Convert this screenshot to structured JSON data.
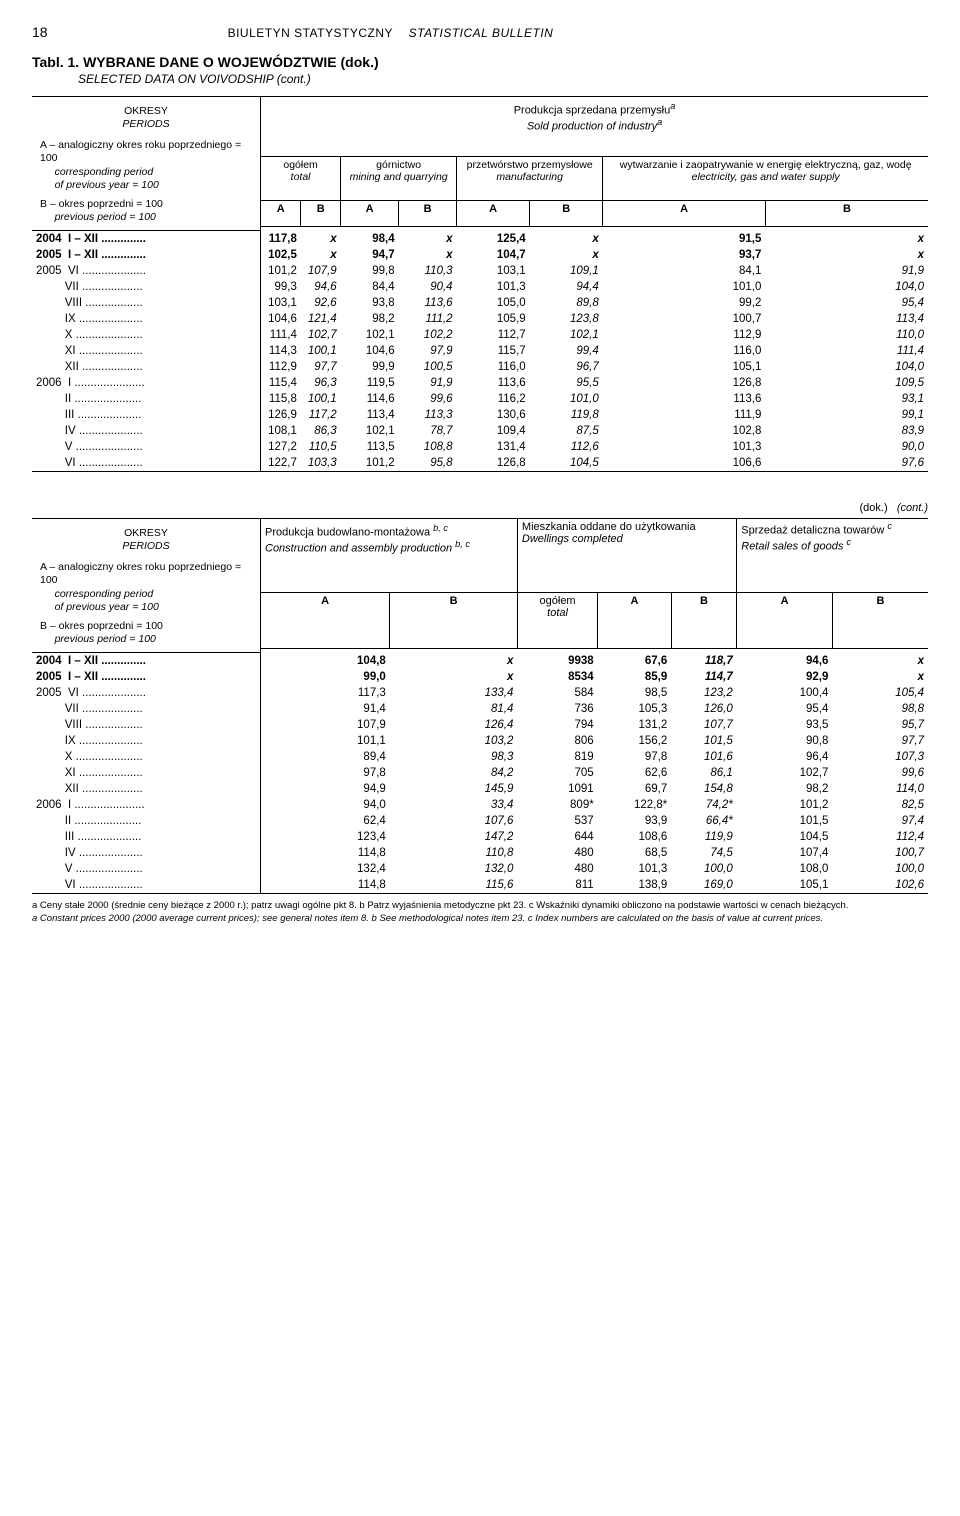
{
  "page_number": "18",
  "bulletin_pl": "BIULETYN STATYSTYCZNY",
  "bulletin_en": "STATISTICAL BULLETIN",
  "table_title": "Tabl. 1. WYBRANE DANE O WOJEWÓDZTWIE (dok.)",
  "table_subtitle": "SELECTED DATA ON VOIVODSHIP (cont.)",
  "periods_block": {
    "title_pl": "OKRESY",
    "title_en": "PERIODS",
    "A_pl": "A – analogiczny okres roku poprzedniego = 100",
    "A_en1": "corresponding period",
    "A_en2": "of previous year = 100",
    "B_pl": "B – okres poprzedni = 100",
    "B_en": "previous period = 100"
  },
  "t1": {
    "super_pl": "Produkcja sprzedana przemysłu",
    "super_en": "Sold production of industry",
    "sup_a": "a",
    "col_total_pl": "ogółem",
    "col_total_en": "total",
    "col_mining_pl": "górnictwo",
    "col_mining_en": "mining and quarrying",
    "col_manuf_pl": "przetwórstwo przemysłowe",
    "col_manuf_en": "manufacturing",
    "col_energy_pl": "wytwarzanie i zaopatrywanie w energię elektryczną, gaz, wodę",
    "col_energy_en": "electricity, gas and water supply",
    "rows": [
      {
        "lbl": "2004  I – XII ..............",
        "v": [
          "117,8",
          "x",
          "98,4",
          "x",
          "125,4",
          "x",
          "91,5",
          "x"
        ],
        "bold": true
      },
      {
        "lbl": "2005  I – XII ..............",
        "v": [
          "102,5",
          "x",
          "94,7",
          "x",
          "104,7",
          "x",
          "93,7",
          "x"
        ],
        "bold": true
      },
      {
        "lbl": "2005  VI ....................",
        "v": [
          "101,2",
          "107,9",
          "99,8",
          "110,3",
          "103,1",
          "109,1",
          "84,1",
          "91,9"
        ]
      },
      {
        "lbl": "         VII ...................",
        "v": [
          "99,3",
          "94,6",
          "84,4",
          "90,4",
          "101,3",
          "94,4",
          "101,0",
          "104,0"
        ]
      },
      {
        "lbl": "         VIII ..................",
        "v": [
          "103,1",
          "92,6",
          "93,8",
          "113,6",
          "105,0",
          "89,8",
          "99,2",
          "95,4"
        ]
      },
      {
        "lbl": "         IX ....................",
        "v": [
          "104,6",
          "121,4",
          "98,2",
          "111,2",
          "105,9",
          "123,8",
          "100,7",
          "113,4"
        ]
      },
      {
        "lbl": "         X .....................",
        "v": [
          "111,4",
          "102,7",
          "102,1",
          "102,2",
          "112,7",
          "102,1",
          "112,9",
          "110,0"
        ]
      },
      {
        "lbl": "         XI ....................",
        "v": [
          "114,3",
          "100,1",
          "104,6",
          "97,9",
          "115,7",
          "99,4",
          "116,0",
          "111,4"
        ]
      },
      {
        "lbl": "         XII ...................",
        "v": [
          "112,9",
          "97,7",
          "99,9",
          "100,5",
          "116,0",
          "96,7",
          "105,1",
          "104,0"
        ]
      },
      {
        "lbl": "2006  I ......................",
        "v": [
          "115,4",
          "96,3",
          "119,5",
          "91,9",
          "113,6",
          "95,5",
          "126,8",
          "109,5"
        ]
      },
      {
        "lbl": "         II .....................",
        "v": [
          "115,8",
          "100,1",
          "114,6",
          "99,6",
          "116,2",
          "101,0",
          "113,6",
          "93,1"
        ]
      },
      {
        "lbl": "         III ....................",
        "v": [
          "126,9",
          "117,2",
          "113,4",
          "113,3",
          "130,6",
          "119,8",
          "111,9",
          "99,1"
        ]
      },
      {
        "lbl": "         IV ....................",
        "v": [
          "108,1",
          "86,3",
          "102,1",
          "78,7",
          "109,4",
          "87,5",
          "102,8",
          "83,9"
        ]
      },
      {
        "lbl": "         V .....................",
        "v": [
          "127,2",
          "110,5",
          "113,5",
          "108,8",
          "131,4",
          "112,6",
          "101,3",
          "90,0"
        ]
      },
      {
        "lbl": "         VI ....................",
        "v": [
          "122,7",
          "103,3",
          "101,2",
          "95,8",
          "126,8",
          "104,5",
          "106,6",
          "97,6"
        ]
      }
    ]
  },
  "dok": "(dok.)",
  "cont": "(cont.)",
  "t2": {
    "col_constr_pl": "Produkcja budowlano-montażowa",
    "col_constr_en": "Construction and assembly production",
    "sup_bc": "b, c",
    "col_dwell_pl": "Mieszkania oddane do użytkowania",
    "col_dwell_en": "Dwellings completed",
    "col_retail_pl": "Sprzedaż detaliczna towarów",
    "col_retail_en": "Retail sales of goods",
    "sup_c": "c",
    "col_total_pl": "ogółem",
    "col_total_en": "total",
    "rows": [
      {
        "lbl": "2004  I – XII ..............",
        "v": [
          "104,8",
          "x",
          "9938",
          "67,6",
          "118,7",
          "94,6",
          "x"
        ],
        "bold": true
      },
      {
        "lbl": "2005  I – XII ..............",
        "v": [
          "99,0",
          "x",
          "8534",
          "85,9",
          "114,7",
          "92,9",
          "x"
        ],
        "bold": true
      },
      {
        "lbl": "2005  VI ....................",
        "v": [
          "117,3",
          "133,4",
          "584",
          "98,5",
          "123,2",
          "100,4",
          "105,4"
        ]
      },
      {
        "lbl": "         VII ...................",
        "v": [
          "91,4",
          "81,4",
          "736",
          "105,3",
          "126,0",
          "95,4",
          "98,8"
        ]
      },
      {
        "lbl": "         VIII ..................",
        "v": [
          "107,9",
          "126,4",
          "794",
          "131,2",
          "107,7",
          "93,5",
          "95,7"
        ]
      },
      {
        "lbl": "         IX ....................",
        "v": [
          "101,1",
          "103,2",
          "806",
          "156,2",
          "101,5",
          "90,8",
          "97,7"
        ]
      },
      {
        "lbl": "         X .....................",
        "v": [
          "89,4",
          "98,3",
          "819",
          "97,8",
          "101,6",
          "96,4",
          "107,3"
        ]
      },
      {
        "lbl": "         XI ....................",
        "v": [
          "97,8",
          "84,2",
          "705",
          "62,6",
          "86,1",
          "102,7",
          "99,6"
        ]
      },
      {
        "lbl": "         XII ...................",
        "v": [
          "94,9",
          "145,9",
          "1091",
          "69,7",
          "154,8",
          "98,2",
          "114,0"
        ]
      },
      {
        "lbl": "2006  I ......................",
        "v": [
          "94,0",
          "33,4",
          "809*",
          "122,8*",
          "74,2*",
          "101,2",
          "82,5"
        ]
      },
      {
        "lbl": "         II .....................",
        "v": [
          "62,4",
          "107,6",
          "537",
          "93,9",
          "66,4*",
          "101,5",
          "97,4"
        ]
      },
      {
        "lbl": "         III ....................",
        "v": [
          "123,4",
          "147,2",
          "644",
          "108,6",
          "119,9",
          "104,5",
          "112,4"
        ]
      },
      {
        "lbl": "         IV ....................",
        "v": [
          "114,8",
          "110,8",
          "480",
          "68,5",
          "74,5",
          "107,4",
          "100,7"
        ]
      },
      {
        "lbl": "         V .....................",
        "v": [
          "132,4",
          "132,0",
          "480",
          "101,3",
          "100,0",
          "108,0",
          "100,0"
        ]
      },
      {
        "lbl": "         VI ....................",
        "v": [
          "114,8",
          "115,6",
          "811",
          "138,9",
          "169,0",
          "105,1",
          "102,6"
        ]
      }
    ]
  },
  "footnote_pl": "a Ceny stałe 2000 (średnie ceny bieżące z 2000 r.);  patrz uwagi ogólne pkt 8.  b Patrz wyjaśnienia metodyczne pkt 23.  c Wskaźniki dynamiki obliczono na podstawie wartości w cenach bieżących.",
  "footnote_en": "a Constant prices 2000 (2000 average current prices); see general notes item 8.  b See methodological notes item 23.  c Index numbers are calculated on the basis of value at current prices."
}
